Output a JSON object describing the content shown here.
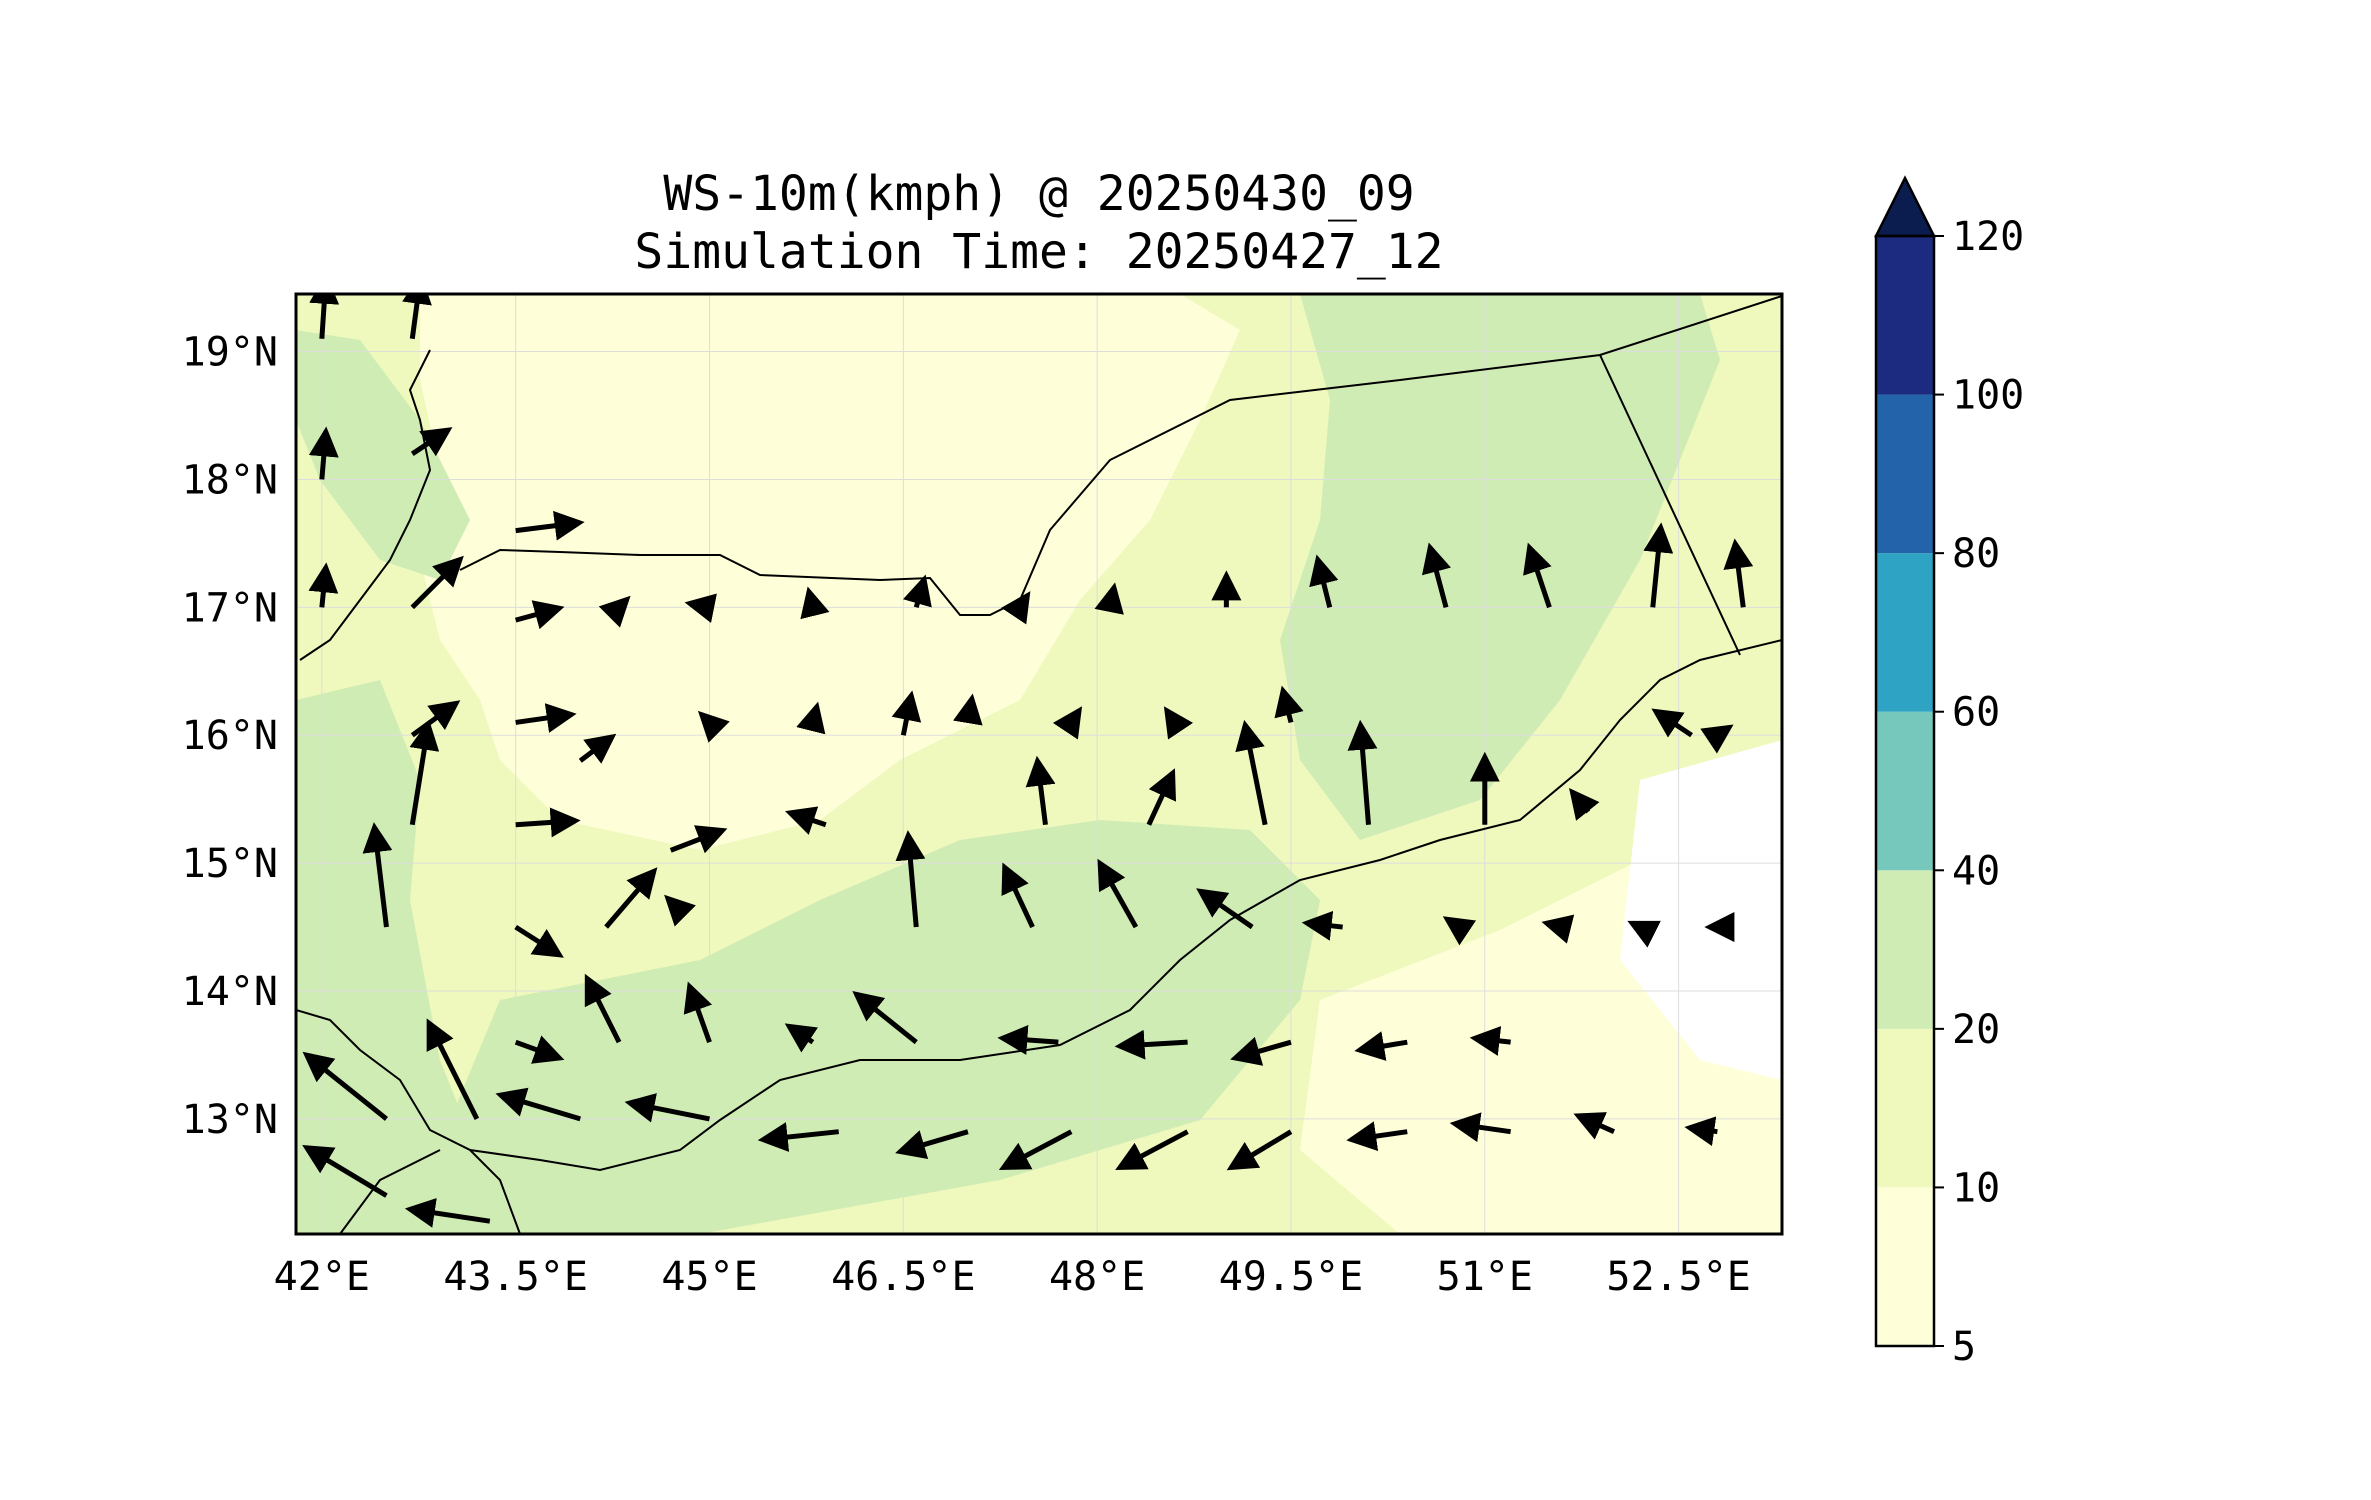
{
  "title": {
    "line1": "WS-10m(kmph) @ 20250430_09",
    "line2": "Simulation Time: 20250427_12"
  },
  "map": {
    "lon_range": [
      41.8,
      53.3
    ],
    "lat_range": [
      12.1,
      19.45
    ],
    "x_ticks": [
      "42°E",
      "43.5°E",
      "45°E",
      "46.5°E",
      "48°E",
      "49.5°E",
      "51°E",
      "52.5°E"
    ],
    "x_tick_values": [
      42,
      43.5,
      45,
      46.5,
      48,
      49.5,
      51,
      52.5
    ],
    "y_ticks": [
      "19°N",
      "18°N",
      "17°N",
      "16°N",
      "15°N",
      "14°N",
      "13°N"
    ],
    "y_tick_values": [
      19,
      18,
      17,
      16,
      15,
      14,
      13
    ],
    "grid": true,
    "field_colors": {
      "5-10": "#feffd9",
      "10-20": "#eff8bd",
      "20-40": "#d0ecb5"
    },
    "vector_color": "#000000",
    "vector_note_units": "kmph"
  },
  "colorbar": {
    "levels": [
      "5",
      "10",
      "20",
      "40",
      "60",
      "80",
      "100",
      "120"
    ],
    "colors": [
      "#feffd9",
      "#eff8bd",
      "#d0ecb5",
      "#76c8bd",
      "#2ea3c3",
      "#2263aa",
      "#1c2a7f"
    ],
    "extend_color": "#0b1d4f",
    "extend": "max"
  },
  "chart_data": {
    "type": "other",
    "description_type": "filled-contour wind-speed map with wind vectors",
    "wind_vectors_lonlat_uv": [
      [
        42.0,
        19.1,
        0.1,
        1.5
      ],
      [
        42.7,
        19.1,
        0.2,
        1.5
      ],
      [
        42.0,
        18.0,
        0.1,
        1.2
      ],
      [
        42.7,
        18.2,
        0.9,
        0.6
      ],
      [
        42.0,
        17.0,
        0.1,
        1.0
      ],
      [
        42.7,
        17.0,
        1.2,
        1.2
      ],
      [
        43.5,
        17.6,
        1.6,
        0.2
      ],
      [
        43.5,
        16.9,
        1.1,
        0.3
      ],
      [
        42.7,
        16.0,
        1.1,
        0.8
      ],
      [
        43.5,
        16.1,
        1.4,
        0.2
      ],
      [
        43.5,
        15.3,
        1.5,
        0.1
      ],
      [
        42.7,
        15.3,
        0.4,
        2.5
      ],
      [
        42.5,
        14.5,
        -0.3,
        2.5
      ],
      [
        43.5,
        14.5,
        1.1,
        -0.7
      ],
      [
        43.5,
        13.6,
        1.1,
        -0.4
      ],
      [
        42.5,
        13.0,
        -2.0,
        1.6
      ],
      [
        43.2,
        13.0,
        -1.2,
        2.4
      ],
      [
        44.0,
        13.0,
        -2.0,
        0.6
      ],
      [
        45.0,
        13.0,
        -2.0,
        0.4
      ],
      [
        46.0,
        12.9,
        -1.9,
        -0.2
      ],
      [
        47.0,
        12.9,
        -1.7,
        -0.5
      ],
      [
        47.8,
        12.9,
        -1.7,
        -0.9
      ],
      [
        48.7,
        12.9,
        -1.7,
        -0.9
      ],
      [
        49.5,
        12.9,
        -1.5,
        -0.9
      ],
      [
        50.4,
        12.9,
        -1.4,
        -0.2
      ],
      [
        51.2,
        12.9,
        -1.4,
        0.2
      ],
      [
        52.0,
        12.9,
        -0.9,
        0.4
      ],
      [
        52.8,
        12.9,
        -0.7,
        0.1
      ],
      [
        42.5,
        12.4,
        -2.0,
        1.2
      ],
      [
        43.3,
        12.2,
        -2.0,
        0.3
      ],
      [
        46.6,
        13.6,
        -1.5,
        1.2
      ],
      [
        47.7,
        13.6,
        -1.4,
        0.1
      ],
      [
        48.7,
        13.6,
        -1.7,
        -0.1
      ],
      [
        49.5,
        13.6,
        -1.4,
        -0.4
      ],
      [
        50.4,
        13.6,
        -1.2,
        -0.2
      ],
      [
        51.2,
        13.6,
        -0.9,
        0.1
      ],
      [
        44.3,
        13.6,
        -0.8,
        1.6
      ],
      [
        45.0,
        13.6,
        -0.5,
        1.4
      ],
      [
        45.8,
        13.6,
        -0.6,
        0.4
      ],
      [
        46.6,
        14.5,
        -0.2,
        2.3
      ],
      [
        47.5,
        14.5,
        -0.7,
        1.5
      ],
      [
        48.3,
        14.5,
        -0.9,
        1.6
      ],
      [
        49.2,
        14.5,
        -1.3,
        0.9
      ],
      [
        49.9,
        14.5,
        -0.9,
        0.1
      ],
      [
        50.8,
        14.5,
        -0.3,
        0.2
      ],
      [
        51.6,
        14.5,
        -0.4,
        0.1
      ],
      [
        52.2,
        14.5,
        -0.2,
        0.1
      ],
      [
        52.8,
        14.5,
        -0.2,
        0.0
      ],
      [
        44.2,
        14.5,
        1.2,
        1.4
      ],
      [
        44.7,
        15.1,
        1.3,
        0.5
      ],
      [
        45.9,
        15.3,
        -0.9,
        0.3
      ],
      [
        44.8,
        14.6,
        -0.4,
        0.4
      ],
      [
        47.6,
        15.3,
        -0.2,
        1.6
      ],
      [
        48.4,
        15.3,
        0.6,
        1.3
      ],
      [
        49.3,
        15.3,
        -0.5,
        2.5
      ],
      [
        50.1,
        15.3,
        -0.2,
        2.5
      ],
      [
        51.0,
        15.3,
        0.0,
        1.7
      ],
      [
        51.8,
        15.4,
        -0.4,
        0.5
      ],
      [
        52.6,
        16.0,
        -0.9,
        0.6
      ],
      [
        52.8,
        16.0,
        0.3,
        0.2
      ],
      [
        46.5,
        16.0,
        0.2,
        1.0
      ],
      [
        47.0,
        16.1,
        0.1,
        0.6
      ],
      [
        47.8,
        16.1,
        0.2,
        0.3
      ],
      [
        48.6,
        16.1,
        -0.2,
        0.3
      ],
      [
        49.5,
        16.1,
        -0.2,
        0.8
      ],
      [
        45.0,
        16.1,
        -0.2,
        0.2
      ],
      [
        45.8,
        16.1,
        0.1,
        0.4
      ],
      [
        44.0,
        15.8,
        0.8,
        0.6
      ],
      [
        44.3,
        17.0,
        0.2,
        0.2
      ],
      [
        45.0,
        17.0,
        -0.5,
        0.1
      ],
      [
        45.8,
        17.0,
        -0.1,
        0.4
      ],
      [
        46.6,
        17.0,
        0.2,
        0.7
      ],
      [
        47.4,
        17.0,
        0.2,
        0.3
      ],
      [
        48.1,
        17.0,
        0.1,
        0.5
      ],
      [
        49.0,
        17.0,
        0.0,
        0.8
      ],
      [
        49.8,
        17.0,
        -0.3,
        1.2
      ],
      [
        50.7,
        17.0,
        -0.4,
        1.5
      ],
      [
        51.5,
        17.0,
        -0.5,
        1.5
      ],
      [
        52.3,
        17.0,
        0.2,
        2.0
      ],
      [
        53.0,
        17.0,
        -0.2,
        1.6
      ]
    ]
  }
}
